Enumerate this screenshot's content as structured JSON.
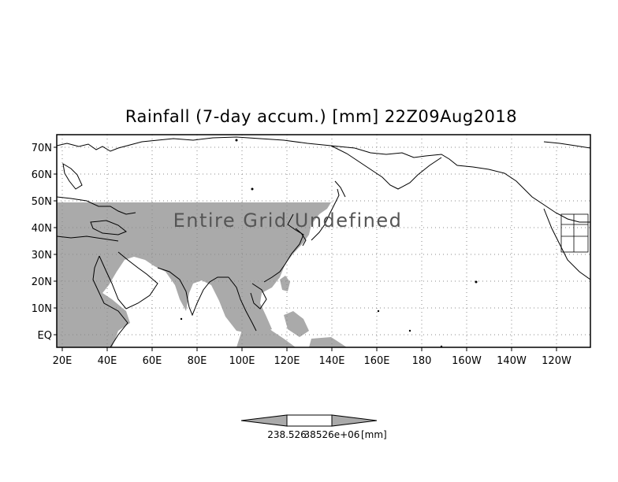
{
  "title": "Rainfall (7-day accum.) [mm] 22Z09Aug2018",
  "overlay_text": "Entire Grid Undefined",
  "lat_labels": [
    "70N",
    "60N",
    "50N",
    "40N",
    "30N",
    "20N",
    "10N",
    "EQ"
  ],
  "lon_labels": [
    "20E",
    "40E",
    "60E",
    "80E",
    "100E",
    "120E",
    "140E",
    "160E",
    "180",
    "160W",
    "140W",
    "120W"
  ],
  "colorbar": {
    "labels": [
      "238.526",
      "38526e+06",
      "[mm]"
    ],
    "fill_color": "#aaaaaa",
    "center_color": "#ffffff"
  },
  "colors": {
    "land_shaded": "#aaaaaa",
    "coastline": "#000000",
    "grid": "#888888"
  }
}
